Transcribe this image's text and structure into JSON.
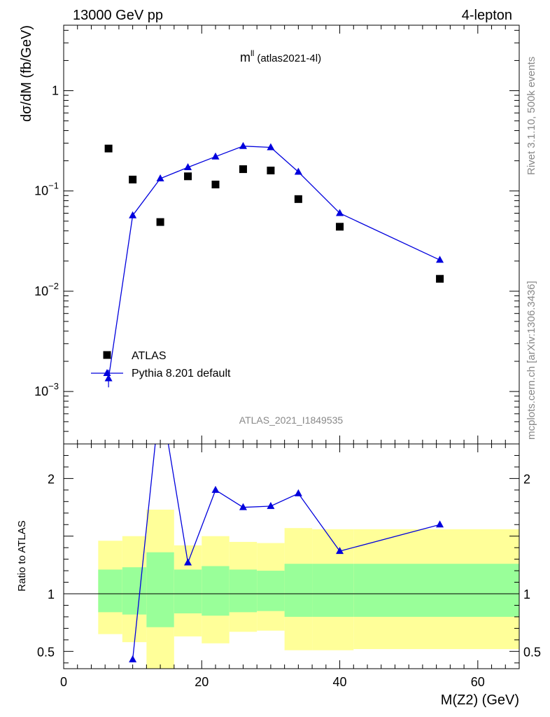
{
  "header": {
    "left": "13000 GeV pp",
    "right": "4-lepton"
  },
  "plot_title": {
    "main": "m",
    "sup": "ll",
    "sub": "(atlas2021-4l)"
  },
  "side_text": {
    "version": "Rivet 3.1.10,  500k events",
    "site": "mcplots.cern.ch [arXiv:1306.3436]"
  },
  "watermark": "ATLAS_2021_I1849535",
  "chart_data": [
    {
      "type": "scatter",
      "ylabel": "dσ/dM (fb/GeV)",
      "yscale": "log",
      "xlim": [
        0,
        66
      ],
      "ylim": [
        0.0003,
        4.5
      ],
      "y_tick_labels": [
        {
          "value": 0.001,
          "base": "10",
          "exp": "−3"
        },
        {
          "value": 0.01,
          "base": "10",
          "exp": "−2"
        },
        {
          "value": 0.1,
          "base": "10",
          "exp": "−1"
        },
        {
          "value": 1,
          "base": "1",
          "exp": ""
        }
      ],
      "legend_position": "bottom-left",
      "series": [
        {
          "name": "ATLAS",
          "marker": "square",
          "color": "#000000",
          "x": [
            6.5,
            10,
            14,
            18,
            22,
            26,
            30,
            34,
            40,
            54.5
          ],
          "y": [
            0.265,
            0.13,
            0.049,
            0.14,
            0.116,
            0.165,
            0.16,
            0.083,
            0.044,
            0.0133
          ]
        },
        {
          "name": "Pythia 8.201 default",
          "marker": "triangle",
          "color": "#0000dd",
          "x": [
            6.5,
            10,
            14,
            18,
            22,
            26,
            30,
            34,
            40,
            54.5
          ],
          "y": [
            0.00135,
            0.057,
            0.133,
            0.172,
            0.22,
            0.28,
            0.272,
            0.155,
            0.06,
            0.0205
          ],
          "y_err_low": [
            0.00025,
            0,
            0,
            0,
            0,
            0,
            0,
            0,
            0,
            0
          ],
          "y_err_high": [
            0.0003,
            0,
            0,
            0,
            0,
            0,
            0,
            0,
            0,
            0
          ]
        }
      ]
    },
    {
      "type": "line",
      "xlabel": "M(Z2) (GeV)",
      "ylabel": "Ratio to ATLAS",
      "xlim": [
        0,
        66
      ],
      "ylim": [
        0.35,
        2.3
      ],
      "x_ticks": [
        0,
        20,
        40,
        60
      ],
      "y_ticks": [
        0.5,
        1,
        2
      ],
      "reference_line": 1,
      "bands": {
        "bins": [
          5,
          8.5,
          12,
          16,
          20,
          24,
          28,
          32,
          36,
          42,
          66
        ],
        "outer_color": "#ffff99",
        "inner_color": "#99ff99",
        "outer_low": [
          0.65,
          0.58,
          0.25,
          0.63,
          0.57,
          0.67,
          0.68,
          0.51,
          0.51,
          0.52
        ],
        "outer_high": [
          1.46,
          1.5,
          1.73,
          1.42,
          1.5,
          1.45,
          1.44,
          1.57,
          1.56,
          1.56
        ],
        "inner_low": [
          0.84,
          0.82,
          0.71,
          0.83,
          0.81,
          0.84,
          0.85,
          0.8,
          0.8,
          0.8
        ],
        "inner_high": [
          1.21,
          1.23,
          1.36,
          1.21,
          1.24,
          1.21,
          1.2,
          1.26,
          1.26,
          1.26
        ]
      },
      "series": [
        {
          "name": "Pythia 8.201 default",
          "color": "#0000dd",
          "x": [
            10,
            14,
            18,
            22,
            26,
            30,
            34,
            40,
            54.5
          ],
          "y": [
            0.43,
            2.72,
            1.27,
            1.9,
            1.75,
            1.76,
            1.87,
            1.37,
            1.6
          ]
        }
      ]
    }
  ]
}
